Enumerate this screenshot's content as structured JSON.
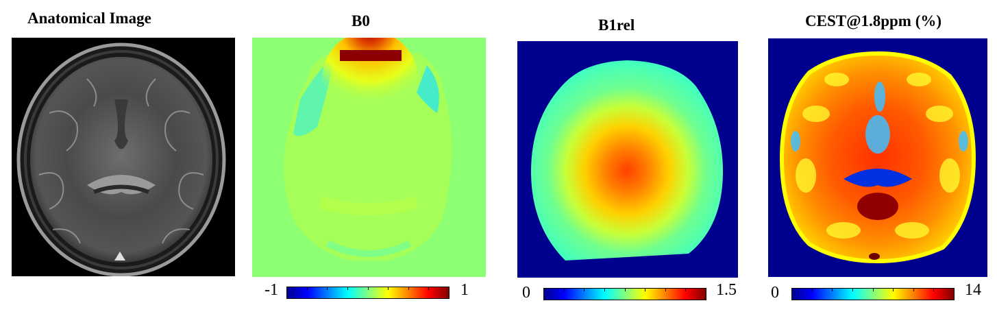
{
  "panels": {
    "anatomical": {
      "title": "Anatomical Image"
    },
    "b0": {
      "title": "B0",
      "colorbar": {
        "min": "-1",
        "max": "1"
      }
    },
    "b1rel": {
      "title": "B1rel",
      "colorbar": {
        "min": "0",
        "max": "1.5"
      }
    },
    "cest": {
      "title": "CEST@1.8ppm (%)",
      "colorbar": {
        "min": "0",
        "max": "14"
      }
    }
  },
  "colors": {
    "colormap": "jet",
    "background_jet": "#00008f",
    "b0_background": "#8cff73"
  }
}
